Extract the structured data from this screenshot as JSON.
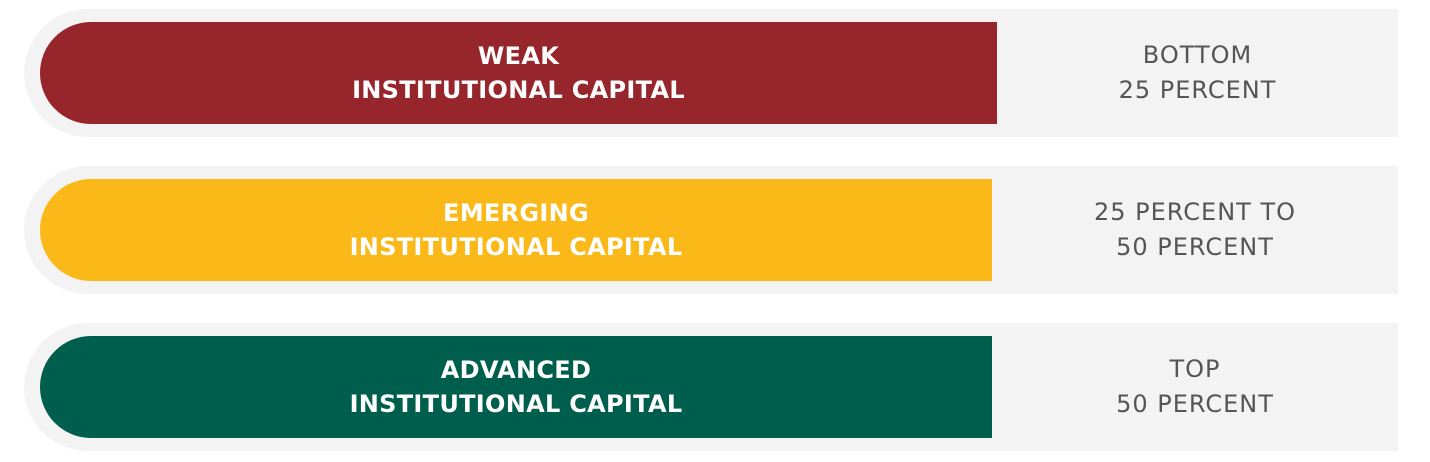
{
  "colors": {
    "weak": "#97262c",
    "emerging": "#fbb819",
    "advanced": "#005f4c",
    "row_background": "#f3f3f3",
    "range_text": "#555555"
  },
  "tiers": [
    {
      "level": "WEAK",
      "label": "INSTITUTIONAL CAPITAL",
      "range_line1": "BOTTOM",
      "range_line2": "25 PERCENT"
    },
    {
      "level": "EMERGING",
      "label": "INSTITUTIONAL CAPITAL",
      "range_line1": "25 PERCENT TO",
      "range_line2": "50 PERCENT"
    },
    {
      "level": "ADVANCED",
      "label": "INSTITUTIONAL CAPITAL",
      "range_line1": "TOP",
      "range_line2": "50 PERCENT"
    }
  ]
}
